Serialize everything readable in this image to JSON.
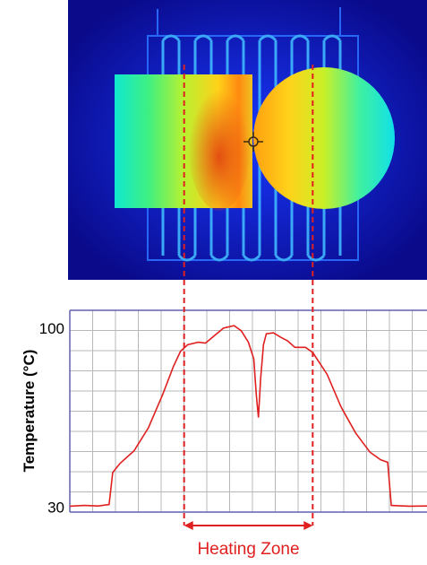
{
  "thermal_image": {
    "background_color": "#0a0a8a",
    "hot_color": "#e23b10",
    "cold_color": "#1020d8",
    "crosshair_icon": "crosshair-icon"
  },
  "chart_data": {
    "type": "line",
    "ylabel": "Temperature (°C)",
    "yticks": [
      30,
      100
    ],
    "ylim": [
      28,
      107
    ],
    "xlim": [
      0,
      100
    ],
    "grid": true,
    "heating_zone": {
      "x_start": 32,
      "x_end": 68,
      "label": "Heating Zone"
    },
    "series": [
      {
        "color": "#e02020",
        "points": [
          [
            0,
            30.3
          ],
          [
            4,
            30.6
          ],
          [
            8,
            30.4
          ],
          [
            11,
            31.0
          ],
          [
            12,
            43.5
          ],
          [
            14,
            47.0
          ],
          [
            18,
            52.0
          ],
          [
            22,
            61.0
          ],
          [
            26,
            74.0
          ],
          [
            29,
            85.0
          ],
          [
            31,
            91.0
          ],
          [
            33,
            93.5
          ],
          [
            36,
            94.5
          ],
          [
            38,
            94.2
          ],
          [
            40,
            96.5
          ],
          [
            43,
            100.0
          ],
          [
            46,
            101.0
          ],
          [
            48,
            99.0
          ],
          [
            50,
            94.5
          ],
          [
            51.5,
            88.0
          ],
          [
            52.2,
            74.0
          ],
          [
            52.8,
            65.0
          ],
          [
            53.4,
            80.0
          ],
          [
            54.2,
            93.5
          ],
          [
            55,
            97.8
          ],
          [
            57,
            98.2
          ],
          [
            59,
            96.5
          ],
          [
            61,
            95.0
          ],
          [
            63,
            92.5
          ],
          [
            66,
            92.5
          ],
          [
            68,
            90.5
          ],
          [
            72,
            82.0
          ],
          [
            76,
            69.0
          ],
          [
            80,
            59.0
          ],
          [
            84,
            51.5
          ],
          [
            87,
            48.5
          ],
          [
            89,
            47.5
          ],
          [
            90,
            30.6
          ],
          [
            95,
            30.3
          ],
          [
            100,
            30.4
          ]
        ]
      }
    ],
    "colors": {
      "line": "#e02020",
      "grid": "#b8b8b8",
      "axis": "#6060b0",
      "marker": "#e02020"
    }
  }
}
